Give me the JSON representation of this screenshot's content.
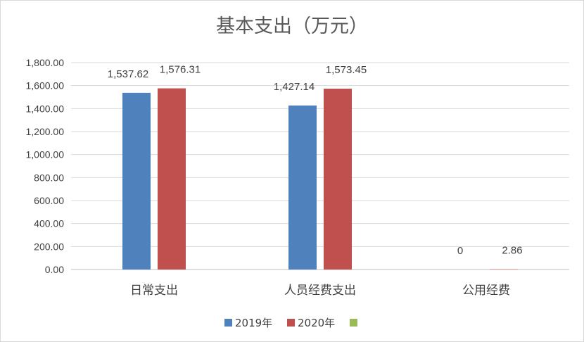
{
  "chart_data": {
    "type": "bar",
    "title": "基本支出（万元）",
    "xlabel": "",
    "ylabel": "",
    "categories": [
      "日常支出",
      "人员经费支出",
      "公用经费"
    ],
    "series": [
      {
        "name": "2019年",
        "values": [
          1537.62,
          1427.14,
          0
        ],
        "labels": [
          "1,537.62",
          "1,427.14",
          "0"
        ],
        "color": "#4f81bd"
      },
      {
        "name": "2020年",
        "values": [
          1576.31,
          1573.45,
          2.86
        ],
        "labels": [
          "1,576.31",
          "1,573.45",
          "2.86"
        ],
        "color": "#c0504d"
      },
      {
        "name": "",
        "values": [
          null,
          null,
          null
        ],
        "labels": [],
        "color": "#9bbb59"
      }
    ],
    "ylim": [
      0,
      1800
    ],
    "yticks": [
      0,
      200,
      400,
      600,
      800,
      1000,
      1200,
      1400,
      1600,
      1800
    ],
    "ytick_labels": [
      "0.00",
      "200.00",
      "400.00",
      "600.00",
      "800.00",
      "1,000.00",
      "1,200.00",
      "1,400.00",
      "1,600.00",
      "1,800.00"
    ],
    "grid": true,
    "legend_position": "bottom"
  }
}
